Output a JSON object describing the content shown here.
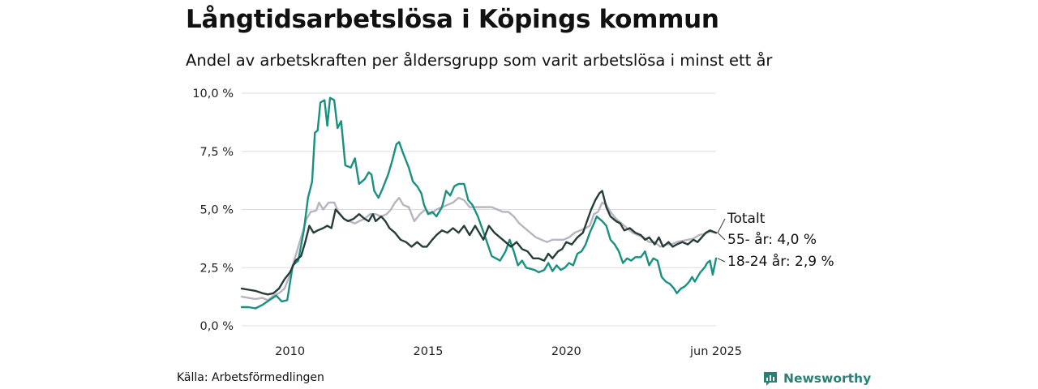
{
  "title": "Långtidsarbetslösa i Köpings kommun",
  "subtitle": "Andel av arbetskraften per åldersgrupp som varit arbetslösa i minst ett år",
  "source": "Källa: Arbetsförmedlingen",
  "brand": "Newsworthy",
  "colors": {
    "young": "#1a9080",
    "older": "#b8b4c0",
    "total": "#263d38",
    "grid": "#dddddd",
    "brand": "#2a8078"
  },
  "chart_data": {
    "type": "line",
    "title": "Långtidsarbetslösa i Köpings kommun",
    "subtitle": "Andel av arbetskraften per åldersgrupp som varit arbetslösa i minst ett år",
    "xlim": [
      2008.25,
      2025.42
    ],
    "ylim": [
      0,
      10
    ],
    "yticks": [
      0,
      2.5,
      5,
      7.5,
      10
    ],
    "ytick_labels": [
      "0,0 %",
      "2,5 %",
      "5,0 %",
      "7,5 %",
      "10,0 %"
    ],
    "xticks": [
      2010,
      2015,
      2020,
      2025.42
    ],
    "xtick_labels": [
      "2010",
      "2015",
      "2020",
      "jun 2025"
    ],
    "grid": "horizontal",
    "series": [
      {
        "name": "18-24 år",
        "color_key": "young",
        "end_label": "18-24 år: 2,9 %",
        "points": [
          [
            2008.25,
            0.8
          ],
          [
            2008.5,
            0.8
          ],
          [
            2008.75,
            0.75
          ],
          [
            2009.0,
            0.9
          ],
          [
            2009.25,
            1.1
          ],
          [
            2009.5,
            1.3
          ],
          [
            2009.7,
            1.05
          ],
          [
            2009.9,
            1.1
          ],
          [
            2010.1,
            2.6
          ],
          [
            2010.3,
            2.8
          ],
          [
            2010.5,
            4.1
          ],
          [
            2010.65,
            5.5
          ],
          [
            2010.8,
            6.2
          ],
          [
            2010.9,
            8.3
          ],
          [
            2011.0,
            8.4
          ],
          [
            2011.1,
            9.6
          ],
          [
            2011.25,
            9.7
          ],
          [
            2011.35,
            8.6
          ],
          [
            2011.45,
            9.8
          ],
          [
            2011.6,
            9.7
          ],
          [
            2011.72,
            8.5
          ],
          [
            2011.85,
            8.8
          ],
          [
            2012.0,
            6.9
          ],
          [
            2012.2,
            6.8
          ],
          [
            2012.35,
            7.2
          ],
          [
            2012.5,
            6.1
          ],
          [
            2012.7,
            6.3
          ],
          [
            2012.85,
            6.6
          ],
          [
            2012.95,
            6.5
          ],
          [
            2013.05,
            5.8
          ],
          [
            2013.2,
            5.5
          ],
          [
            2013.35,
            5.9
          ],
          [
            2013.55,
            6.5
          ],
          [
            2013.7,
            7.1
          ],
          [
            2013.85,
            7.8
          ],
          [
            2013.95,
            7.9
          ],
          [
            2014.1,
            7.4
          ],
          [
            2014.3,
            6.8
          ],
          [
            2014.45,
            6.2
          ],
          [
            2014.6,
            6.0
          ],
          [
            2014.75,
            5.7
          ],
          [
            2014.85,
            5.2
          ],
          [
            2015.0,
            4.8
          ],
          [
            2015.15,
            4.9
          ],
          [
            2015.3,
            4.7
          ],
          [
            2015.5,
            5.1
          ],
          [
            2015.65,
            5.8
          ],
          [
            2015.8,
            5.6
          ],
          [
            2015.95,
            6.0
          ],
          [
            2016.1,
            6.1
          ],
          [
            2016.3,
            6.1
          ],
          [
            2016.45,
            5.4
          ],
          [
            2016.6,
            5.2
          ],
          [
            2016.8,
            4.7
          ],
          [
            2016.95,
            4.2
          ],
          [
            2017.1,
            3.7
          ],
          [
            2017.3,
            3.0
          ],
          [
            2017.45,
            2.9
          ],
          [
            2017.6,
            2.8
          ],
          [
            2017.8,
            3.2
          ],
          [
            2017.95,
            3.7
          ],
          [
            2018.1,
            3.2
          ],
          [
            2018.25,
            2.6
          ],
          [
            2018.4,
            2.8
          ],
          [
            2018.55,
            2.5
          ],
          [
            2018.7,
            2.45
          ],
          [
            2018.85,
            2.4
          ],
          [
            2019.0,
            2.3
          ],
          [
            2019.2,
            2.4
          ],
          [
            2019.35,
            2.7
          ],
          [
            2019.5,
            2.35
          ],
          [
            2019.65,
            2.6
          ],
          [
            2019.8,
            2.4
          ],
          [
            2019.95,
            2.5
          ],
          [
            2020.1,
            2.7
          ],
          [
            2020.25,
            2.6
          ],
          [
            2020.4,
            3.1
          ],
          [
            2020.55,
            3.2
          ],
          [
            2020.7,
            3.5
          ],
          [
            2020.85,
            4.0
          ],
          [
            2021.0,
            4.4
          ],
          [
            2021.1,
            4.7
          ],
          [
            2021.3,
            4.5
          ],
          [
            2021.45,
            4.3
          ],
          [
            2021.6,
            3.7
          ],
          [
            2021.75,
            3.5
          ],
          [
            2021.9,
            3.2
          ],
          [
            2022.05,
            2.7
          ],
          [
            2022.2,
            2.9
          ],
          [
            2022.35,
            2.8
          ],
          [
            2022.5,
            2.95
          ],
          [
            2022.7,
            2.95
          ],
          [
            2022.85,
            3.2
          ],
          [
            2023.0,
            2.6
          ],
          [
            2023.15,
            2.9
          ],
          [
            2023.3,
            2.8
          ],
          [
            2023.45,
            2.1
          ],
          [
            2023.6,
            1.9
          ],
          [
            2023.75,
            1.8
          ],
          [
            2023.9,
            1.6
          ],
          [
            2024.0,
            1.4
          ],
          [
            2024.15,
            1.6
          ],
          [
            2024.3,
            1.7
          ],
          [
            2024.45,
            1.9
          ],
          [
            2024.55,
            2.1
          ],
          [
            2024.65,
            1.9
          ],
          [
            2024.75,
            2.1
          ],
          [
            2024.85,
            2.3
          ],
          [
            2025.0,
            2.5
          ],
          [
            2025.1,
            2.7
          ],
          [
            2025.2,
            2.8
          ],
          [
            2025.3,
            2.2
          ],
          [
            2025.42,
            2.9
          ]
        ]
      },
      {
        "name": "55- år",
        "color_key": "older",
        "end_label": "55- år: 4,0 %",
        "points": [
          [
            2008.25,
            1.25
          ],
          [
            2008.5,
            1.2
          ],
          [
            2008.75,
            1.15
          ],
          [
            2009.0,
            1.2
          ],
          [
            2009.2,
            1.1
          ],
          [
            2009.4,
            1.3
          ],
          [
            2009.6,
            1.4
          ],
          [
            2009.8,
            1.6
          ],
          [
            2010.0,
            2.2
          ],
          [
            2010.2,
            3.0
          ],
          [
            2010.4,
            3.8
          ],
          [
            2010.6,
            4.6
          ],
          [
            2010.75,
            4.9
          ],
          [
            2010.95,
            4.95
          ],
          [
            2011.05,
            5.3
          ],
          [
            2011.2,
            5.0
          ],
          [
            2011.4,
            5.3
          ],
          [
            2011.6,
            5.3
          ],
          [
            2011.75,
            4.9
          ],
          [
            2011.95,
            4.6
          ],
          [
            2012.15,
            4.5
          ],
          [
            2012.35,
            4.4
          ],
          [
            2012.5,
            4.5
          ],
          [
            2012.7,
            4.6
          ],
          [
            2012.9,
            4.8
          ],
          [
            2013.1,
            4.8
          ],
          [
            2013.3,
            4.7
          ],
          [
            2013.5,
            4.8
          ],
          [
            2013.65,
            5.0
          ],
          [
            2013.8,
            5.3
          ],
          [
            2013.95,
            5.5
          ],
          [
            2014.1,
            5.2
          ],
          [
            2014.3,
            5.1
          ],
          [
            2014.5,
            4.5
          ],
          [
            2014.7,
            4.8
          ],
          [
            2014.9,
            5.0
          ],
          [
            2015.1,
            4.8
          ],
          [
            2015.3,
            5.0
          ],
          [
            2015.5,
            5.1
          ],
          [
            2015.7,
            5.2
          ],
          [
            2015.9,
            5.3
          ],
          [
            2016.1,
            5.5
          ],
          [
            2016.3,
            5.4
          ],
          [
            2016.5,
            5.1
          ],
          [
            2016.7,
            5.1
          ],
          [
            2016.9,
            5.1
          ],
          [
            2017.1,
            5.1
          ],
          [
            2017.3,
            5.1
          ],
          [
            2017.5,
            5.0
          ],
          [
            2017.7,
            4.9
          ],
          [
            2017.9,
            4.9
          ],
          [
            2018.1,
            4.7
          ],
          [
            2018.3,
            4.4
          ],
          [
            2018.5,
            4.2
          ],
          [
            2018.7,
            4.0
          ],
          [
            2018.9,
            3.8
          ],
          [
            2019.1,
            3.7
          ],
          [
            2019.3,
            3.6
          ],
          [
            2019.5,
            3.7
          ],
          [
            2019.7,
            3.7
          ],
          [
            2019.9,
            3.7
          ],
          [
            2020.1,
            3.8
          ],
          [
            2020.3,
            4.0
          ],
          [
            2020.5,
            4.1
          ],
          [
            2020.7,
            4.2
          ],
          [
            2020.85,
            4.3
          ],
          [
            2021.0,
            4.8
          ],
          [
            2021.15,
            4.9
          ],
          [
            2021.3,
            5.3
          ],
          [
            2021.45,
            5.2
          ],
          [
            2021.6,
            4.9
          ],
          [
            2021.8,
            4.6
          ],
          [
            2022.0,
            4.4
          ],
          [
            2022.2,
            4.2
          ],
          [
            2022.4,
            4.0
          ],
          [
            2022.6,
            3.9
          ],
          [
            2022.8,
            3.8
          ],
          [
            2023.0,
            3.6
          ],
          [
            2023.2,
            3.6
          ],
          [
            2023.4,
            3.4
          ],
          [
            2023.6,
            3.5
          ],
          [
            2023.8,
            3.5
          ],
          [
            2024.0,
            3.6
          ],
          [
            2024.2,
            3.65
          ],
          [
            2024.4,
            3.7
          ],
          [
            2024.6,
            3.75
          ],
          [
            2024.8,
            3.9
          ],
          [
            2025.0,
            3.95
          ],
          [
            2025.2,
            4.05
          ],
          [
            2025.42,
            4.0
          ]
        ]
      },
      {
        "name": "Totalt",
        "color_key": "total",
        "end_label": "Totalt",
        "points": [
          [
            2008.25,
            1.6
          ],
          [
            2008.5,
            1.55
          ],
          [
            2008.75,
            1.5
          ],
          [
            2009.0,
            1.4
          ],
          [
            2009.2,
            1.35
          ],
          [
            2009.4,
            1.4
          ],
          [
            2009.6,
            1.6
          ],
          [
            2009.8,
            2.0
          ],
          [
            2010.0,
            2.3
          ],
          [
            2010.2,
            2.8
          ],
          [
            2010.4,
            3.0
          ],
          [
            2010.55,
            3.6
          ],
          [
            2010.7,
            4.3
          ],
          [
            2010.85,
            4.0
          ],
          [
            2011.0,
            4.1
          ],
          [
            2011.2,
            4.2
          ],
          [
            2011.35,
            4.3
          ],
          [
            2011.5,
            4.2
          ],
          [
            2011.65,
            5.0
          ],
          [
            2011.8,
            4.8
          ],
          [
            2011.95,
            4.6
          ],
          [
            2012.1,
            4.5
          ],
          [
            2012.3,
            4.6
          ],
          [
            2012.5,
            4.8
          ],
          [
            2012.7,
            4.6
          ],
          [
            2012.85,
            4.5
          ],
          [
            2013.0,
            4.8
          ],
          [
            2013.1,
            4.5
          ],
          [
            2013.3,
            4.7
          ],
          [
            2013.45,
            4.5
          ],
          [
            2013.6,
            4.2
          ],
          [
            2013.8,
            4.0
          ],
          [
            2014.0,
            3.7
          ],
          [
            2014.2,
            3.6
          ],
          [
            2014.4,
            3.4
          ],
          [
            2014.6,
            3.6
          ],
          [
            2014.8,
            3.4
          ],
          [
            2014.95,
            3.4
          ],
          [
            2015.15,
            3.7
          ],
          [
            2015.3,
            3.9
          ],
          [
            2015.5,
            4.1
          ],
          [
            2015.7,
            4.0
          ],
          [
            2015.9,
            4.2
          ],
          [
            2016.1,
            4.0
          ],
          [
            2016.3,
            4.3
          ],
          [
            2016.5,
            3.9
          ],
          [
            2016.7,
            4.3
          ],
          [
            2016.85,
            4.0
          ],
          [
            2017.0,
            3.7
          ],
          [
            2017.2,
            4.3
          ],
          [
            2017.4,
            4.0
          ],
          [
            2017.6,
            3.8
          ],
          [
            2017.8,
            3.6
          ],
          [
            2018.0,
            3.4
          ],
          [
            2018.2,
            3.6
          ],
          [
            2018.4,
            3.3
          ],
          [
            2018.6,
            3.2
          ],
          [
            2018.8,
            2.9
          ],
          [
            2019.0,
            2.9
          ],
          [
            2019.2,
            2.8
          ],
          [
            2019.35,
            3.1
          ],
          [
            2019.5,
            2.9
          ],
          [
            2019.7,
            3.2
          ],
          [
            2019.85,
            3.3
          ],
          [
            2020.0,
            3.6
          ],
          [
            2020.2,
            3.5
          ],
          [
            2020.4,
            3.8
          ],
          [
            2020.6,
            4.0
          ],
          [
            2020.75,
            4.5
          ],
          [
            2020.9,
            5.0
          ],
          [
            2021.05,
            5.4
          ],
          [
            2021.2,
            5.7
          ],
          [
            2021.3,
            5.8
          ],
          [
            2021.45,
            5.1
          ],
          [
            2021.6,
            4.7
          ],
          [
            2021.8,
            4.5
          ],
          [
            2021.95,
            4.4
          ],
          [
            2022.1,
            4.1
          ],
          [
            2022.3,
            4.2
          ],
          [
            2022.5,
            4.0
          ],
          [
            2022.7,
            3.9
          ],
          [
            2022.85,
            3.7
          ],
          [
            2023.0,
            3.8
          ],
          [
            2023.2,
            3.5
          ],
          [
            2023.35,
            3.8
          ],
          [
            2023.5,
            3.4
          ],
          [
            2023.7,
            3.6
          ],
          [
            2023.85,
            3.4
          ],
          [
            2024.0,
            3.5
          ],
          [
            2024.2,
            3.6
          ],
          [
            2024.4,
            3.5
          ],
          [
            2024.6,
            3.7
          ],
          [
            2024.75,
            3.6
          ],
          [
            2024.9,
            3.8
          ],
          [
            2025.05,
            4.0
          ],
          [
            2025.2,
            4.1
          ],
          [
            2025.42,
            4.0
          ]
        ]
      }
    ]
  }
}
